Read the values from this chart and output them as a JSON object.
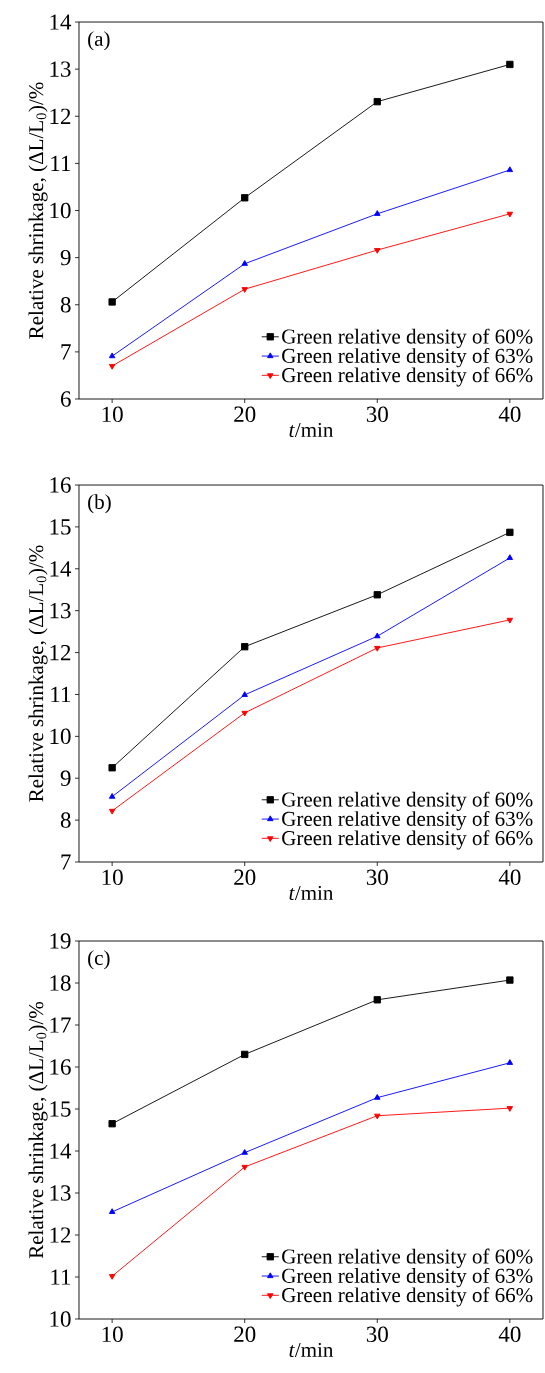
{
  "chart_data": [
    {
      "type": "line",
      "title": "(a)",
      "xlabel": "*t*/min",
      "ylabel": "Relative shrinkage, (ΔL/L$_{0}$)/%",
      "x": [
        10,
        20,
        30,
        40
      ],
      "xlim": [
        7.5,
        42.5
      ],
      "xticks": [
        10,
        20,
        30,
        40
      ],
      "ylim": [
        6,
        14
      ],
      "yticks": [
        6,
        7,
        8,
        9,
        10,
        11,
        12,
        13,
        14
      ],
      "legend": "bottom right",
      "grid": false,
      "line_style": "solid",
      "series": [
        {
          "name": "Green relative density of 60%",
          "color": "#000000",
          "marker": "square",
          "values": [
            8.06,
            10.27,
            12.31,
            13.1
          ]
        },
        {
          "name": "Green relative density of 63%",
          "color": "#0000ff",
          "marker": "triangle",
          "values": [
            6.91,
            8.87,
            9.93,
            10.86
          ]
        },
        {
          "name": "Green relative density of 66%",
          "color": "#ff0000",
          "marker": "triangle-down",
          "values": [
            6.7,
            8.33,
            9.16,
            9.93
          ]
        }
      ]
    },
    {
      "type": "line",
      "title": "(b)",
      "xlabel": "*t*/min",
      "ylabel": "Relative shrinkage, (ΔL/L$_{0}$)/%",
      "x": [
        10,
        20,
        30,
        40
      ],
      "xlim": [
        7.5,
        42.5
      ],
      "xticks": [
        10,
        20,
        30,
        40
      ],
      "ylim": [
        7,
        16
      ],
      "yticks": [
        7,
        8,
        9,
        10,
        11,
        12,
        13,
        14,
        15,
        16
      ],
      "legend": "bottom right",
      "grid": false,
      "line_style": "solid",
      "series": [
        {
          "name": "Green relative density of 60%",
          "color": "#000000",
          "marker": "square",
          "values": [
            9.25,
            12.14,
            13.38,
            14.87
          ]
        },
        {
          "name": "Green relative density of 63%",
          "color": "#0000ff",
          "marker": "triangle",
          "values": [
            8.56,
            10.99,
            12.39,
            14.26
          ]
        },
        {
          "name": "Green relative density of 66%",
          "color": "#ff0000",
          "marker": "triangle-down",
          "values": [
            8.22,
            10.56,
            12.11,
            12.78
          ]
        }
      ]
    },
    {
      "type": "line",
      "title": "(c)",
      "xlabel": "*t*/min",
      "ylabel": "Relative shrinkage, (ΔL/L$_{0}$)/%",
      "x": [
        10,
        20,
        30,
        40
      ],
      "xlim": [
        7.5,
        42.5
      ],
      "xticks": [
        10,
        20,
        30,
        40
      ],
      "ylim": [
        10,
        19
      ],
      "yticks": [
        10,
        11,
        12,
        13,
        14,
        15,
        16,
        17,
        18,
        19
      ],
      "legend": "bottom right",
      "grid": false,
      "line_style": "solid",
      "series": [
        {
          "name": "Green relative density of 60%",
          "color": "#000000",
          "marker": "square",
          "values": [
            14.65,
            16.3,
            17.6,
            18.07
          ]
        },
        {
          "name": "Green relative density of 63%",
          "color": "#0000ff",
          "marker": "triangle",
          "values": [
            12.55,
            13.96,
            15.27,
            16.1
          ]
        },
        {
          "name": "Green relative density of 66%",
          "color": "#ff0000",
          "marker": "triangle-down",
          "values": [
            11.02,
            13.62,
            14.84,
            15.02
          ]
        }
      ]
    }
  ]
}
